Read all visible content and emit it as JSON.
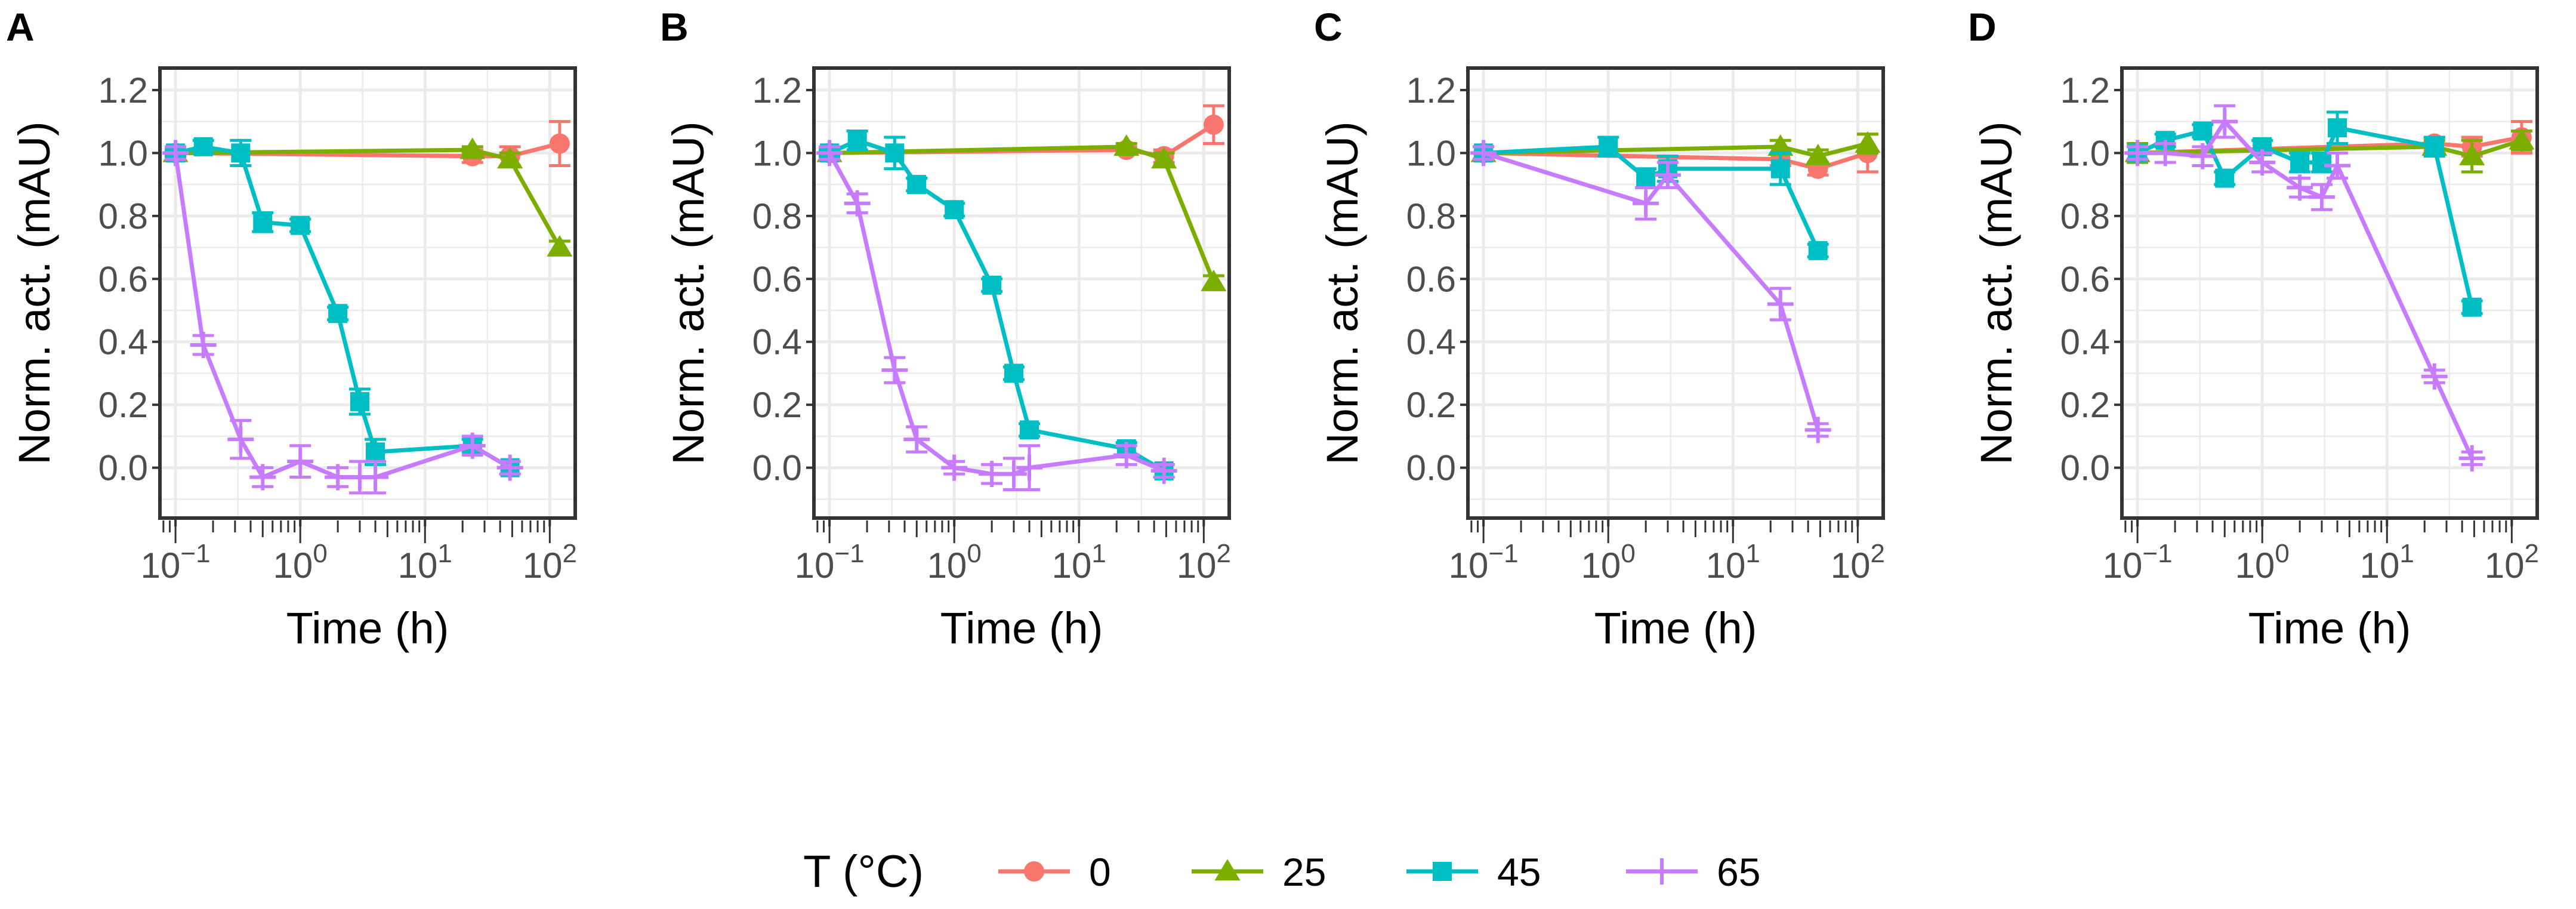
{
  "legend": {
    "title": "T (°C)",
    "entries": [
      {
        "label": "0",
        "color": "#F8766D",
        "shape": "circle"
      },
      {
        "label": "25",
        "color": "#7CAE00",
        "shape": "triangle"
      },
      {
        "label": "45",
        "color": "#00BFC4",
        "shape": "square"
      },
      {
        "label": "65",
        "color": "#C77CFF",
        "shape": "plus"
      }
    ]
  },
  "chart_data": [
    {
      "panel": "A",
      "type": "line",
      "xlabel": "Time (h)",
      "ylabel": "Norm. act. (mAU)",
      "xscale": "log10",
      "xlim": [
        0.075,
        160
      ],
      "ylim": [
        -0.16,
        1.27
      ],
      "yticks": [
        "0.0",
        "0.2",
        "0.4",
        "0.6",
        "0.8",
        "1.0",
        "1.2"
      ],
      "xticks": [
        "10^-1",
        "10^0",
        "10^1",
        "10^2"
      ],
      "series": [
        {
          "name": "0",
          "x": [
            0.1,
            24,
            48,
            120
          ],
          "y": [
            1.0,
            0.99,
            0.99,
            1.03
          ],
          "err": [
            0.01,
            0.02,
            0.03,
            0.07
          ]
        },
        {
          "name": "25",
          "x": [
            0.1,
            24,
            48,
            120
          ],
          "y": [
            1.0,
            1.01,
            0.98,
            0.7
          ],
          "err": [
            0.01,
            0.01,
            0.02,
            0.02
          ]
        },
        {
          "name": "45",
          "x": [
            0.1,
            0.167,
            0.333,
            0.5,
            1,
            2,
            3,
            4,
            24,
            48
          ],
          "y": [
            1.0,
            1.02,
            1.0,
            0.78,
            0.77,
            0.49,
            0.21,
            0.05,
            0.07,
            0.0
          ],
          "err": [
            0.01,
            0.02,
            0.04,
            0.03,
            0.02,
            0.02,
            0.04,
            0.04,
            0.02,
            0.02
          ]
        },
        {
          "name": "65",
          "x": [
            0.1,
            0.167,
            0.333,
            0.5,
            1,
            2,
            3,
            4,
            24,
            48
          ],
          "y": [
            1.0,
            0.39,
            0.09,
            -0.03,
            0.02,
            -0.03,
            -0.03,
            -0.03,
            0.07,
            0.0
          ],
          "err": [
            0.02,
            0.03,
            0.06,
            0.03,
            0.05,
            0.03,
            0.05,
            0.05,
            0.03,
            0.02
          ]
        }
      ]
    },
    {
      "panel": "B",
      "type": "line",
      "xlabel": "Time (h)",
      "ylabel": "Norm. act. (mAU)",
      "xscale": "log10",
      "xlim": [
        0.075,
        160
      ],
      "ylim": [
        -0.16,
        1.27
      ],
      "yticks": [
        "0.0",
        "0.2",
        "0.4",
        "0.6",
        "0.8",
        "1.0",
        "1.2"
      ],
      "xticks": [
        "10^-1",
        "10^0",
        "10^1",
        "10^2"
      ],
      "series": [
        {
          "name": "0",
          "x": [
            0.1,
            24,
            48,
            120
          ],
          "y": [
            1.0,
            1.01,
            0.99,
            1.09
          ],
          "err": [
            0.01,
            0.01,
            0.02,
            0.06
          ]
        },
        {
          "name": "25",
          "x": [
            0.1,
            24,
            48,
            120
          ],
          "y": [
            1.0,
            1.02,
            0.98,
            0.59
          ],
          "err": [
            0.01,
            0.01,
            0.02,
            0.02
          ]
        },
        {
          "name": "45",
          "x": [
            0.1,
            0.167,
            0.333,
            0.5,
            1,
            2,
            3,
            4,
            24,
            48
          ],
          "y": [
            1.0,
            1.04,
            1.0,
            0.9,
            0.82,
            0.58,
            0.3,
            0.12,
            0.06,
            -0.01
          ],
          "err": [
            0.01,
            0.03,
            0.05,
            0.02,
            0.02,
            0.02,
            0.02,
            0.02,
            0.02,
            0.02
          ]
        },
        {
          "name": "65",
          "x": [
            0.1,
            0.167,
            0.333,
            0.5,
            1,
            2,
            3,
            4,
            24,
            48
          ],
          "y": [
            1.0,
            0.84,
            0.31,
            0.09,
            0.0,
            -0.02,
            -0.02,
            0.0,
            0.04,
            -0.01
          ],
          "err": [
            0.02,
            0.03,
            0.04,
            0.04,
            0.02,
            0.03,
            0.05,
            0.07,
            0.03,
            0.02
          ]
        }
      ]
    },
    {
      "panel": "C",
      "type": "line",
      "xlabel": "Time (h)",
      "ylabel": "Norm. act. (mAU)",
      "xscale": "log10",
      "xlim": [
        0.075,
        160
      ],
      "ylim": [
        -0.16,
        1.27
      ],
      "yticks": [
        "0.0",
        "0.2",
        "0.4",
        "0.6",
        "0.8",
        "1.0",
        "1.2"
      ],
      "xticks": [
        "10^-1",
        "10^0",
        "10^1",
        "10^2"
      ],
      "series": [
        {
          "name": "0",
          "x": [
            0.1,
            24,
            48,
            120
          ],
          "y": [
            1.0,
            0.98,
            0.95,
            1.0
          ],
          "err": [
            0.02,
            0.02,
            0.02,
            0.06
          ]
        },
        {
          "name": "25",
          "x": [
            0.1,
            24,
            48,
            120
          ],
          "y": [
            1.0,
            1.02,
            0.99,
            1.03
          ],
          "err": [
            0.02,
            0.02,
            0.02,
            0.03
          ]
        },
        {
          "name": "45",
          "x": [
            0.1,
            1,
            2,
            3,
            24,
            48
          ],
          "y": [
            1.0,
            1.02,
            0.92,
            0.95,
            0.95,
            0.69
          ],
          "err": [
            0.02,
            0.03,
            0.03,
            0.04,
            0.05,
            0.02
          ]
        },
        {
          "name": "65",
          "x": [
            0.1,
            2,
            3,
            24,
            48
          ],
          "y": [
            1.0,
            0.84,
            0.93,
            0.52,
            0.12
          ],
          "err": [
            0.02,
            0.05,
            0.04,
            0.05,
            0.02
          ]
        }
      ]
    },
    {
      "panel": "D",
      "type": "line",
      "xlabel": "Time (h)",
      "ylabel": "Norm. act. (mAU)",
      "xscale": "log10",
      "xlim": [
        0.075,
        160
      ],
      "ylim": [
        -0.16,
        1.27
      ],
      "yticks": [
        "0.0",
        "0.2",
        "0.4",
        "0.6",
        "0.8",
        "1.0",
        "1.2"
      ],
      "xticks": [
        "10^-1",
        "10^0",
        "10^1",
        "10^2"
      ],
      "series": [
        {
          "name": "0",
          "x": [
            0.1,
            24,
            48,
            120
          ],
          "y": [
            1.0,
            1.03,
            1.02,
            1.05
          ],
          "err": [
            0.02,
            0.02,
            0.03,
            0.05
          ]
        },
        {
          "name": "25",
          "x": [
            0.1,
            24,
            48,
            120
          ],
          "y": [
            1.0,
            1.02,
            0.99,
            1.04
          ],
          "err": [
            0.03,
            0.02,
            0.05,
            0.03
          ]
        },
        {
          "name": "45",
          "x": [
            0.1,
            0.167,
            0.333,
            0.5,
            1,
            2,
            3,
            4,
            24,
            48
          ],
          "y": [
            1.0,
            1.04,
            1.07,
            0.92,
            1.02,
            0.97,
            0.97,
            1.08,
            1.02,
            0.51
          ],
          "err": [
            0.02,
            0.02,
            0.02,
            0.02,
            0.02,
            0.03,
            0.03,
            0.05,
            0.03,
            0.02
          ]
        },
        {
          "name": "65",
          "x": [
            0.1,
            0.167,
            0.333,
            0.5,
            1,
            2,
            3,
            4,
            24,
            48
          ],
          "y": [
            1.0,
            1.0,
            0.99,
            1.1,
            0.97,
            0.89,
            0.86,
            0.96,
            0.29,
            0.03
          ],
          "err": [
            0.02,
            0.03,
            0.03,
            0.05,
            0.03,
            0.03,
            0.04,
            0.04,
            0.02,
            0.02
          ]
        }
      ]
    }
  ]
}
